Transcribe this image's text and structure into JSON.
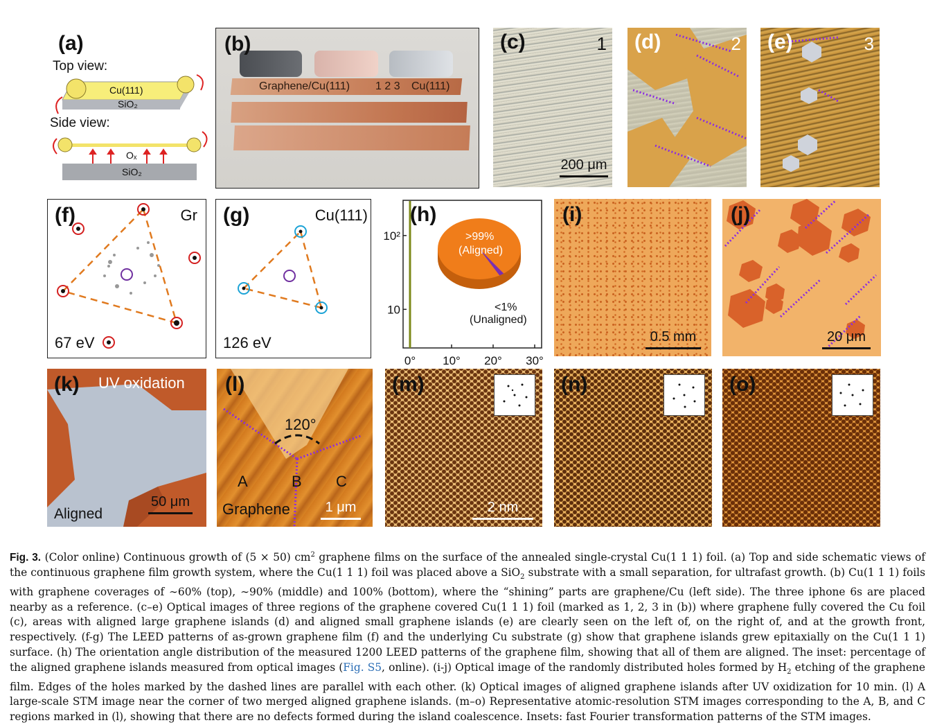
{
  "panels": {
    "a": {
      "label": "(a)",
      "top_view": "Top view:",
      "side_view": "Side view:",
      "cu_label": "Cu(111)",
      "sio2_top": "SiO₂",
      "ox_label": "Oₓ",
      "sio2_side": "SiO₂"
    },
    "b": {
      "label": "(b)",
      "foil_text": "Graphene/Cu(111)",
      "markers": "1 2 3",
      "cu_text": "Cu(111)"
    },
    "c": {
      "label": "(c)",
      "number": "1",
      "scale": "200 μm"
    },
    "d": {
      "label": "(d)",
      "number": "2"
    },
    "e": {
      "label": "(e)",
      "number": "3"
    },
    "f": {
      "label": "(f)",
      "tag": "Gr",
      "energy": "67 eV"
    },
    "g": {
      "label": "(g)",
      "tag": "Cu(111)",
      "energy": "126 eV"
    },
    "h": {
      "label": "(h)",
      "pie_aligned_pct": ">99%",
      "pie_aligned": "(Aligned)",
      "pie_unaligned_pct": "<1%",
      "pie_unaligned": "(Unaligned)"
    },
    "i": {
      "label": "(i)",
      "scale": "0.5 mm"
    },
    "j": {
      "label": "(j)",
      "scale": "20 μm"
    },
    "k": {
      "label": "(k)",
      "title": "UV oxidation",
      "corner": "Aligned",
      "scale": "50 μm"
    },
    "l": {
      "label": "(l)",
      "angle": "120°",
      "region_a": "A",
      "region_b": "B",
      "region_c": "C",
      "material": "Graphene",
      "scale": "1 μm"
    },
    "m": {
      "label": "(m)",
      "scale": "2 nm"
    },
    "n": {
      "label": "(n)"
    },
    "o": {
      "label": "(o)"
    }
  },
  "chart_data": {
    "type": "bar",
    "panel": "h",
    "y_scale": "log",
    "y_ticks": [
      "10",
      "10²"
    ],
    "x_ticks": [
      "0°",
      "10°",
      "20°",
      "30°"
    ],
    "xlim": [
      0,
      30
    ],
    "bar_at_deg": 0,
    "bar_count": 1200,
    "pie": [
      {
        "name": ">99% (Aligned)",
        "value": 99.5,
        "color": "#f07d1a"
      },
      {
        "name": "<1% (Unaligned)",
        "value": 0.5,
        "color": "#7a2fb0"
      }
    ]
  },
  "colors": {
    "orange": "#e8891e",
    "purple_dash": "#8a2be2",
    "leed_red": "#d42020",
    "leed_blue": "#1ca3d6",
    "bar_olive": "#7d8a1a"
  },
  "caption": {
    "fig_label": "Fig. 3.",
    "p1": "(Color online) Continuous growth of (5 × 50) cm",
    "p1_sup": "2",
    "p2": " graphene films on the surface of the annealed single-crystal Cu(1 1 1) foil. (a) Top and side schematic views of the continuous graphene film growth system, where the Cu(1 1 1) foil was placed above a SiO",
    "p2_sub": "2",
    "p3": " substrate with a small separation, for ultrafast growth. (b) Cu(1 1 1) foils with graphene coverages of ∼60% (top), ∼90% (middle) and 100% (bottom), where the “shining” parts are graphene/Cu (left side). The three iphone 6s are placed nearby as a reference. (c–e) Optical images of three regions of the graphene covered Cu(1 1 1) foil (marked as 1, 2, 3 in (b)) where graphene fully covered the Cu foil (c), areas with aligned large graphene islands (d) and aligned small graphene islands (e) are clearly seen on the left of, on the right of, and at the growth front, respectively. (f-g) The LEED patterns of as-grown graphene film (f) and the underlying Cu substrate (g) show that graphene islands grew epitaxially on the Cu(1 1 1) surface. (h) The orientation angle distribution of the measured 1200 LEED patterns of the graphene film, showing that all of them are aligned. The inset: percentage of the aligned graphene islands measured from optical images (",
    "link": "Fig. S5",
    "p4": ", online). (i-j) Optical image of the randomly distributed holes formed by H",
    "p4_sub": "2",
    "p5": " etching of the graphene film. Edges of the holes marked by the dashed lines are parallel with each other. (k) Optical images of aligned graphene islands after UV oxidization for 10 min. (l) A large-scale STM image near the corner of two merged aligned graphene islands. (m–o) Representative atomic-resolution STM images corresponding to the A, B, and C regions marked in (l), showing that there are no defects formed during the island coalescence. Insets: fast Fourier transformation patterns of the STM images."
  }
}
